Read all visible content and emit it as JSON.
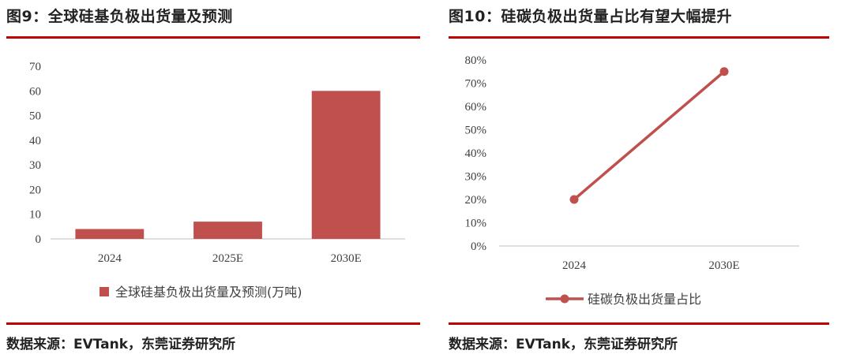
{
  "left": {
    "title": "图9：全球硅基负极出货量及预测",
    "source": "数据来源：EVTank，东莞证券研究所"
  },
  "right": {
    "title": "图10：硅碳负极出货量占比有望大幅提升",
    "source": "数据来源：EVTank，东莞证券研究所"
  },
  "colors": {
    "accent": "#c00000",
    "series": "#c0504d",
    "axis": "#bfbfbf"
  },
  "chart_data": [
    {
      "type": "bar",
      "categories": [
        "2024",
        "2025E",
        "2030E"
      ],
      "series": [
        {
          "name": "全球硅基负极出货量及预测(万吨)",
          "values": [
            4,
            7,
            60
          ]
        }
      ],
      "y_ticks": [
        "0",
        "10",
        "20",
        "30",
        "40",
        "50",
        "60",
        "70"
      ],
      "ylim": [
        0,
        70
      ],
      "grid": false,
      "legend_position": "bottom"
    },
    {
      "type": "line",
      "categories": [
        "2024",
        "2030E"
      ],
      "series": [
        {
          "name": "硅碳负极出货量占比",
          "values": [
            20,
            75
          ]
        }
      ],
      "y_ticks": [
        "0%",
        "10%",
        "20%",
        "30%",
        "40%",
        "50%",
        "60%",
        "70%",
        "80%"
      ],
      "ylim": [
        0,
        80
      ],
      "grid": false,
      "legend_position": "bottom"
    }
  ]
}
